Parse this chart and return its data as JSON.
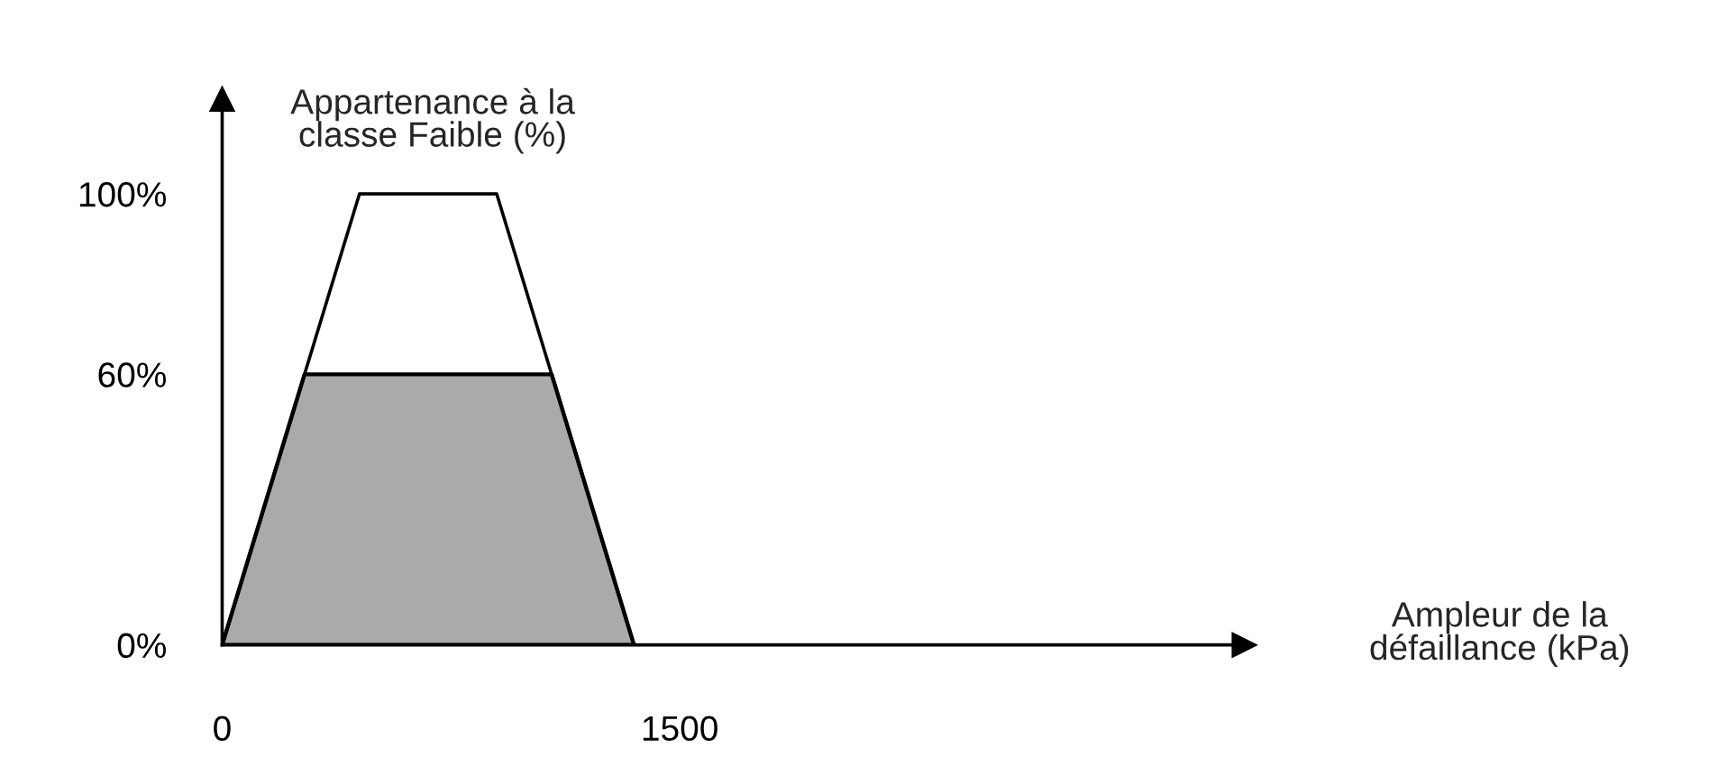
{
  "chart_data": {
    "type": "line",
    "xlabel": "Ampleur de la\ndéfaillance (kPa)",
    "ylabel": "Appartenance à la\nclasse Faible (%)",
    "series": [
      {
        "color": "#000000",
        "x": [
          0,
          450,
          900,
          1350
        ],
        "values": [
          0,
          100,
          100,
          0
        ]
      },
      {
        "type": "area",
        "color": "#aaaaaa",
        "x": [
          0,
          270,
          1080,
          1350
        ],
        "values": [
          0,
          60,
          60,
          0
        ]
      }
    ],
    "xlim": [
      0,
      3350
    ],
    "ylim": [
      0,
      121
    ],
    "xticks": [
      0,
      1500
    ],
    "yticks": [
      {
        "value": 0,
        "label": "0%"
      },
      {
        "value": 60,
        "label": "60%"
      },
      {
        "value": 100,
        "label": "100%"
      }
    ],
    "grid": false,
    "legend": false
  }
}
